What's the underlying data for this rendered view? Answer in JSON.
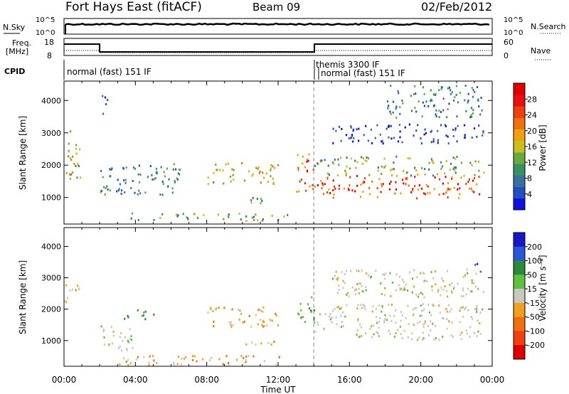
{
  "header": {
    "title": "Fort Hays East (fitACF)",
    "beam": "Beam 09",
    "date": "02/Feb/2012"
  },
  "nsky_panel": {
    "left_label": "N.Sky",
    "left_ticks": [
      "10^5",
      "10^0"
    ],
    "right_label": "N.Search",
    "right_ticks": [
      "10^5",
      "10^0"
    ]
  },
  "freq_panel": {
    "left_label_1": "Freq.",
    "left_label_2": "[MHz]",
    "left_ticks": [
      "18",
      "8"
    ],
    "right_label": "Nave",
    "right_ticks": [
      "60",
      "0"
    ]
  },
  "cpid_panel": {
    "label": "CPID",
    "segments": [
      "normal (fast) 151 IF",
      "themis 3300 IF",
      "normal (fast) 151 IF"
    ]
  },
  "chart_data": [
    {
      "type": "heatmap",
      "name": "power",
      "ylabel": "Slant Range [km]",
      "xlabel": "Time UT",
      "x_ticks": [
        "00:00",
        "04:00",
        "08:00",
        "12:00",
        "16:00",
        "20:00",
        "00:00"
      ],
      "y_ticks": [
        "1000",
        "2000",
        "3000",
        "4000"
      ],
      "ylim": [
        180,
        4600
      ],
      "colorbar": {
        "label": "Power [dB]",
        "ticks": [
          "4",
          "8",
          "12",
          "16",
          "20",
          "24",
          "28"
        ],
        "colors": [
          "#1010e0",
          "#2050c0",
          "#3a70a0",
          "#3a9060",
          "#6aa840",
          "#c8c020",
          "#f0a010",
          "#f07010",
          "#f04010",
          "#e81010",
          "#e00000"
        ]
      },
      "features": [
        {
          "t0": 0.0,
          "t1": 0.9,
          "r0": 1600,
          "r1": 3100,
          "level": "medium-high"
        },
        {
          "t0": 2.0,
          "t1": 2.4,
          "r0": 3500,
          "r1": 4200,
          "level": "low"
        },
        {
          "t0": 2.0,
          "t1": 6.5,
          "r0": 1100,
          "r1": 2100,
          "level": "low-medium"
        },
        {
          "t0": 3.5,
          "t1": 12.5,
          "r0": 300,
          "r1": 550,
          "level": "medium"
        },
        {
          "t0": 8.0,
          "t1": 12.0,
          "r0": 1450,
          "r1": 2100,
          "level": "medium-high"
        },
        {
          "t0": 10.0,
          "t1": 12.0,
          "r0": 850,
          "r1": 1050,
          "level": "medium"
        },
        {
          "t0": 13.0,
          "t1": 14.0,
          "r0": 1200,
          "r1": 2500,
          "level": "high"
        },
        {
          "t0": 14.0,
          "t1": 23.5,
          "r0": 1000,
          "r1": 1700,
          "level": "high"
        },
        {
          "t0": 14.0,
          "t1": 23.5,
          "r0": 1700,
          "r1": 2300,
          "level": "medium"
        },
        {
          "t0": 15.0,
          "t1": 23.5,
          "r0": 2700,
          "r1": 3300,
          "level": "low"
        },
        {
          "t0": 18.0,
          "t1": 23.5,
          "r0": 3500,
          "r1": 4500,
          "level": "low-medium"
        }
      ]
    },
    {
      "type": "heatmap",
      "name": "velocity",
      "ylabel": "Slant Range [km]",
      "xlabel": "Time UT",
      "x_ticks": [
        "00:00",
        "04:00",
        "08:00",
        "12:00",
        "16:00",
        "20:00",
        "00:00"
      ],
      "y_ticks": [
        "1000",
        "2000",
        "3000",
        "4000"
      ],
      "ylim": [
        180,
        4600
      ],
      "colorbar": {
        "label": "Velocity [m s⁻¹]",
        "ticks": [
          "200",
          "100",
          "50",
          "15",
          "-15",
          "-50",
          "-100",
          "-200"
        ],
        "colors": [
          "#1818c8",
          "#2858d8",
          "#2a8a3a",
          "#60c040",
          "#c8c8c0",
          "#f0a020",
          "#f07010",
          "#f04010",
          "#e00000"
        ]
      },
      "features": [
        {
          "t0": 0.0,
          "t1": 0.9,
          "r0": 2200,
          "r1": 2900,
          "level": "grey"
        },
        {
          "t0": 2.0,
          "t1": 4.0,
          "r0": 700,
          "r1": 1500,
          "level": "grey"
        },
        {
          "t0": 3.0,
          "t1": 5.0,
          "r0": 1700,
          "r1": 2000,
          "level": "green-dark"
        },
        {
          "t0": 3.0,
          "t1": 12.5,
          "r0": 250,
          "r1": 550,
          "level": "orange"
        },
        {
          "t0": 8.0,
          "t1": 12.0,
          "r0": 1450,
          "r1": 2100,
          "level": "orange"
        },
        {
          "t0": 10.0,
          "t1": 12.0,
          "r0": 800,
          "r1": 1000,
          "level": "orange"
        },
        {
          "t0": 13.0,
          "t1": 14.0,
          "r0": 1500,
          "r1": 2500,
          "level": "green"
        },
        {
          "t0": 14.0,
          "t1": 23.5,
          "r0": 1050,
          "r1": 2200,
          "level": "grey"
        },
        {
          "t0": 15.0,
          "t1": 23.5,
          "r0": 2400,
          "r1": 3300,
          "level": "grey"
        },
        {
          "t0": 22.8,
          "t1": 23.5,
          "r0": 3200,
          "r1": 3500,
          "level": "blue"
        }
      ]
    }
  ]
}
